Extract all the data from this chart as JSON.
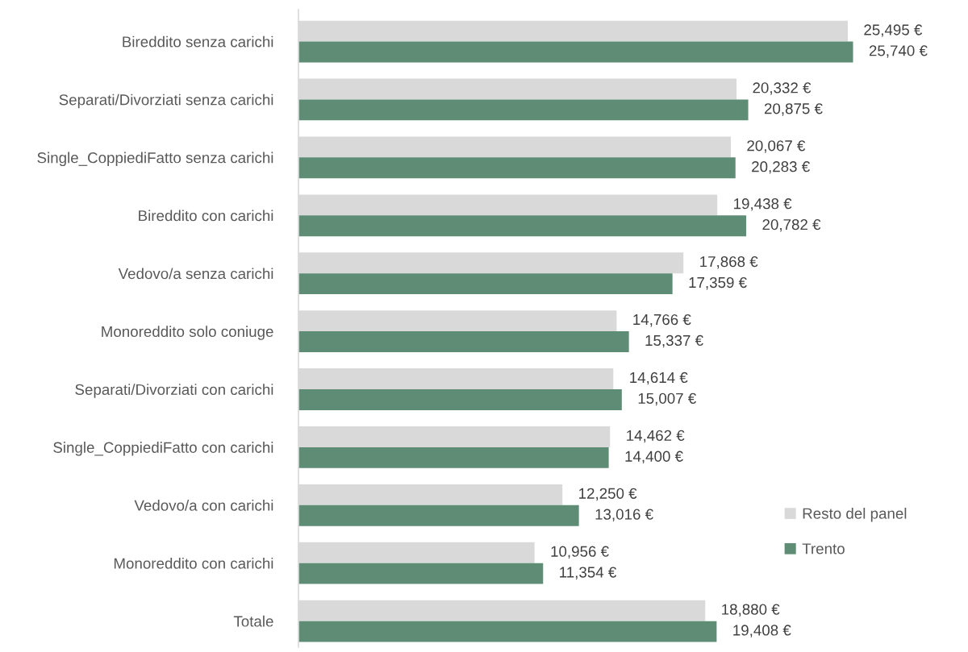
{
  "chart_data": {
    "type": "bar",
    "orientation": "horizontal",
    "categories": [
      "Bireddito senza carichi",
      "Separati/Divorziati senza carichi",
      "Single_CoppiediFatto senza carichi",
      "Bireddito con carichi",
      "Vedovo/a senza carichi",
      "Monoreddito solo coniuge",
      "Separati/Divorziati con carichi",
      "Single_CoppiediFatto con carichi",
      "Vedovo/a con carichi",
      "Monoreddito con carichi",
      "Totale"
    ],
    "series": [
      {
        "name": "Resto del panel",
        "color": "#d9d9d9",
        "values": [
          25495,
          20332,
          20067,
          19438,
          17868,
          14766,
          14614,
          14462,
          12250,
          10956,
          18880
        ],
        "value_labels": [
          "25,495 €",
          "20,332 €",
          "20,067 €",
          "19,438 €",
          "17,868 €",
          "14,766 €",
          "14,614 €",
          "14,462 €",
          "12,250 €",
          "10,956 €",
          "18,880 €"
        ]
      },
      {
        "name": "Trento",
        "color": "#5e8c74",
        "values": [
          25740,
          20875,
          20283,
          20782,
          17359,
          15337,
          15007,
          14400,
          13016,
          11354,
          19408
        ],
        "value_labels": [
          "25,740 €",
          "20,875 €",
          "20,283 €",
          "20,782 €",
          "17,359 €",
          "15,337 €",
          "15,007 €",
          "14,400 €",
          "13,016 €",
          "11,354 €",
          "19,408 €"
        ]
      }
    ],
    "legend": "bottom right",
    "grid": false,
    "tick_labels": "y"
  }
}
